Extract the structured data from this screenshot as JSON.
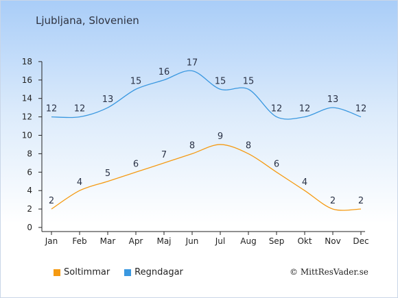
{
  "title": "Ljubljana, Slovenien",
  "copyright": "© MittResVader.se",
  "colors": {
    "sun": "#f59a12",
    "rain": "#3a98e0"
  },
  "chart_data": {
    "type": "line",
    "categories": [
      "Jan",
      "Feb",
      "Mar",
      "Apr",
      "Maj",
      "Jun",
      "Jul",
      "Aug",
      "Sep",
      "Okt",
      "Nov",
      "Dec"
    ],
    "ylim": [
      0,
      18
    ],
    "yticks": [
      0,
      2,
      4,
      6,
      8,
      10,
      12,
      14,
      16,
      18
    ],
    "grid": false,
    "legend_position": "bottom-left",
    "series": [
      {
        "name": "Soltimmar",
        "color": "#f59a12",
        "values": [
          2,
          4,
          5,
          6,
          7,
          8,
          9,
          8,
          6,
          4,
          2,
          2
        ]
      },
      {
        "name": "Regndagar",
        "color": "#3a98e0",
        "values": [
          12,
          12,
          13,
          15,
          16,
          17,
          15,
          15,
          12,
          12,
          13,
          12
        ]
      }
    ]
  }
}
